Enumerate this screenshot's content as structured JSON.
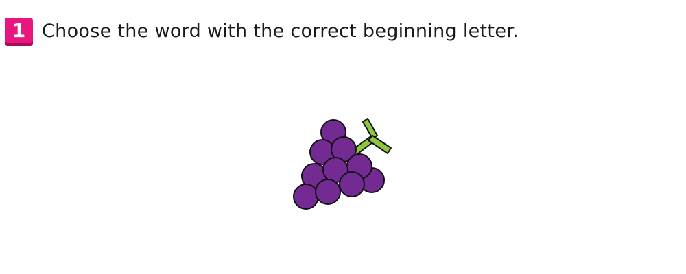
{
  "question": {
    "number": "1",
    "prompt": "Choose the word with the correct beginning letter."
  },
  "picture": {
    "icon": "grapes-icon",
    "colors": {
      "grape_fill": "#732a93",
      "grape_outline": "#111111",
      "stem_fill": "#8dc63f",
      "badge_face": "#e8177f",
      "badge_shadow": "#ad0a58"
    }
  }
}
